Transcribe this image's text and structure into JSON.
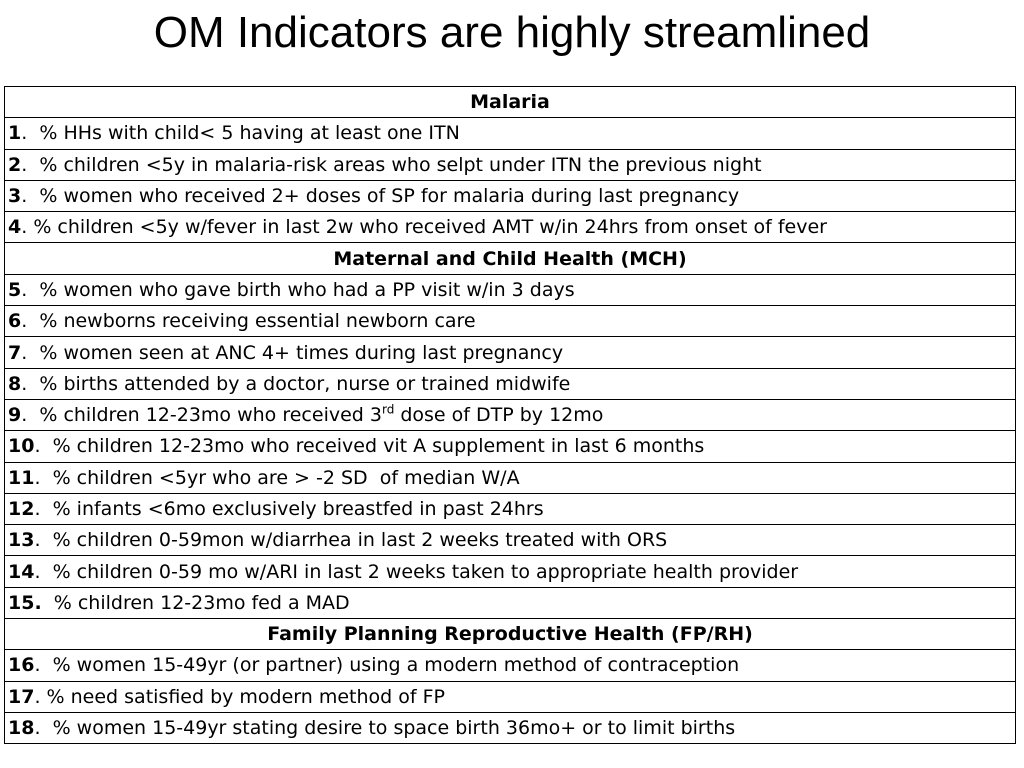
{
  "title": "OM Indicators are highly streamlined",
  "sections": [
    {
      "heading": "Malaria",
      "rows": [
        {
          "num": "1",
          "text": ".  % HHs with child< 5 having at least one ITN"
        },
        {
          "num": "2",
          "text": ".  % children <5y in malaria-risk areas who selpt under ITN the previous night"
        },
        {
          "num": "3",
          "text": ".  % women who received 2+ doses of SP for malaria during last pregnancy"
        },
        {
          "num": "4",
          "text": ". % children <5y w/fever in last 2w who received AMT w/in 24hrs from onset of fever"
        }
      ]
    },
    {
      "heading": "Maternal and Child Health (MCH)",
      "rows": [
        {
          "num": "5",
          "text": ".  % women who gave birth who had a PP visit w/in 3 days"
        },
        {
          "num": "6",
          "text": ".  % newborns receiving essential newborn care"
        },
        {
          "num": "7",
          "text": ".  % women seen at ANC 4+ times during last pregnancy"
        },
        {
          "num": "8",
          "text": ".  % births attended by a doctor, nurse or trained midwife"
        },
        {
          "num": "9",
          "text": ".  % children 12-23mo who received 3",
          "sup": "rd",
          "after": " dose of DTP by 12mo"
        },
        {
          "num": "10",
          "text": ".  % children 12-23mo who received vit A supplement in last 6 months"
        },
        {
          "num": "11",
          "text": ".  % children <5yr who are > -2 SD  of median W/A"
        },
        {
          "num": "12",
          "text": ".  % infants <6mo exclusively breastfed in past 24hrs"
        },
        {
          "num": "13",
          "text": ".  % children 0-59mon w/diarrhea in last 2 weeks treated with ORS"
        },
        {
          "num": "14",
          "text": ".  % children 0-59 mo w/ARI in last 2 weeks taken to appropriate health provider"
        },
        {
          "num": "15.",
          "text": "  % children 12-23mo fed a MAD"
        }
      ]
    },
    {
      "heading": "Family Planning Reproductive Health (FP/RH)",
      "rows": [
        {
          "num": "16",
          "text": ".  % women 15-49yr (or partner) using a modern method of contraception"
        },
        {
          "num": "17",
          "text": ". % need satisfied by modern method of FP"
        },
        {
          "num": "18",
          "text": ".  % women 15-49yr stating desire to space birth 36mo+ or to limit births"
        }
      ]
    }
  ]
}
